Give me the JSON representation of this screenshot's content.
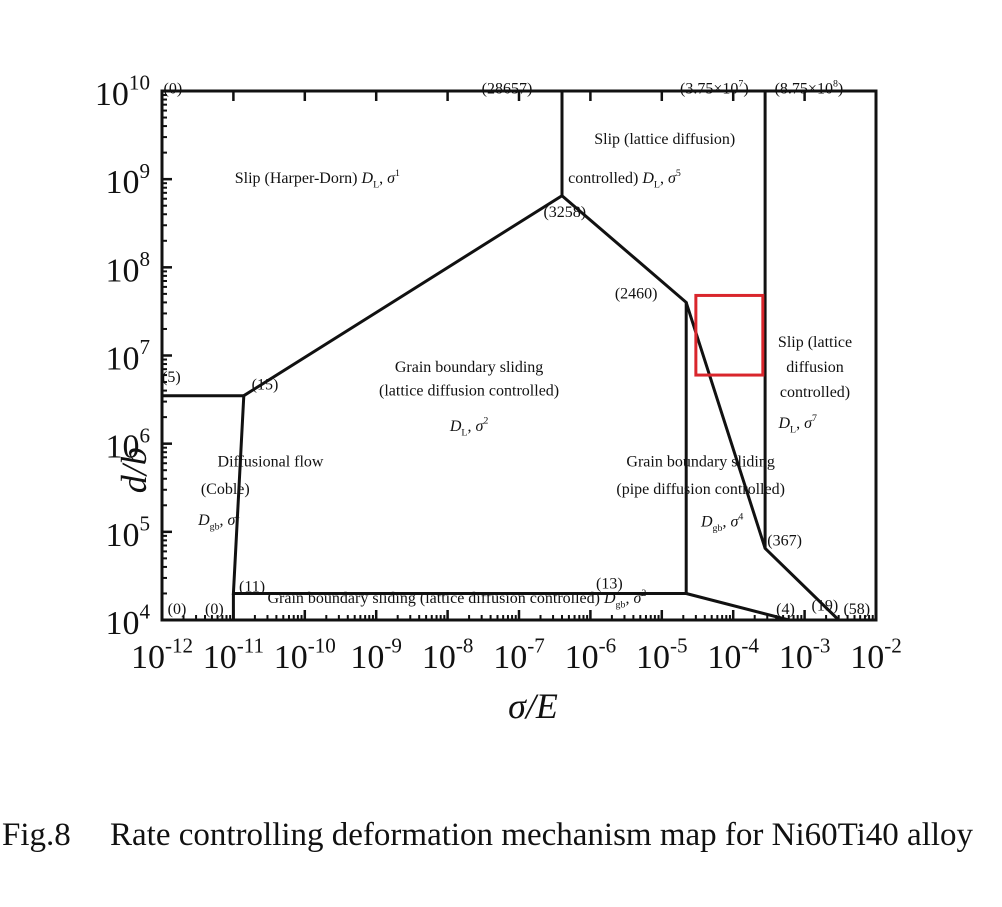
{
  "caption": {
    "label": "Fig.8",
    "text": "Rate controlling deformation mechanism map for Ni60Ti40 alloy"
  },
  "chart_data": {
    "type": "deformation-mechanism-map",
    "xlabel": "σ/E",
    "ylabel": "d/b",
    "x_scale": "log",
    "y_scale": "log",
    "xlim": [
      1e-12,
      0.01
    ],
    "ylim": [
      10000.0,
      10000000000.0
    ],
    "x_ticks": [
      {
        "exp": "-12"
      },
      {
        "exp": "-11"
      },
      {
        "exp": "-10"
      },
      {
        "exp": "-9"
      },
      {
        "exp": "-8"
      },
      {
        "exp": "-7"
      },
      {
        "exp": "-6"
      },
      {
        "exp": "-5"
      },
      {
        "exp": "-4"
      },
      {
        "exp": "-3"
      },
      {
        "exp": "-2"
      }
    ],
    "y_ticks": [
      {
        "exp": "4"
      },
      {
        "exp": "5"
      },
      {
        "exp": "6"
      },
      {
        "exp": "7"
      },
      {
        "exp": "8"
      },
      {
        "exp": "9"
      },
      {
        "exp": "10"
      }
    ],
    "boundaries": [
      {
        "points": [
          [
            1e-12,
            3500000.0
          ],
          [
            1.4e-11,
            3500000.0
          ]
        ]
      },
      {
        "points": [
          [
            1.4e-11,
            3500000.0
          ],
          [
            4e-07,
            650000000.0
          ],
          [
            2.2e-05,
            40000000.0
          ],
          [
            2.2e-05,
            20000.0
          ]
        ]
      },
      {
        "points": [
          [
            4e-07,
            650000000.0
          ],
          [
            4e-07,
            10000000000.0
          ]
        ]
      },
      {
        "points": [
          [
            1.4e-11,
            3500000.0
          ],
          [
            1e-11,
            20000.0
          ],
          [
            2.2e-05,
            20000.0
          ]
        ]
      },
      {
        "points": [
          [
            1e-11,
            20000.0
          ],
          [
            1e-11,
            10000.0
          ]
        ]
      },
      {
        "points": [
          [
            2.2e-05,
            40000000.0
          ],
          [
            0.00028,
            65000.0
          ],
          [
            0.003,
            10000.0
          ]
        ]
      },
      {
        "points": [
          [
            2.2e-05,
            20000.0
          ],
          [
            0.0006,
            10000.0
          ]
        ]
      },
      {
        "points": [
          [
            0.00028,
            65000.0
          ],
          [
            0.00028,
            10000000000.0
          ]
        ]
      }
    ],
    "regions": [
      {
        "name": "Slip (Harper-Dorn) D_L, σ^1",
        "lines": [
          {
            "x": 1.5e-10,
            "y": 900000000.0,
            "parts": [
              {
                "t": "Slip (Harper-Dorn) "
              },
              {
                "t": "D",
                "i": true
              },
              {
                "t": "L",
                "sub": true
              },
              {
                "t": ", "
              },
              {
                "t": "σ",
                "i": true
              },
              {
                "t": "1",
                "sup": true
              }
            ]
          }
        ]
      },
      {
        "name": "Slip (lattice diffusion) controlled D_L, σ^5",
        "lines": [
          {
            "x": 1.1e-05,
            "y": 2500000000.0,
            "parts": [
              {
                "t": "Slip (lattice diffusion)"
              }
            ]
          },
          {
            "x": 3e-06,
            "y": 900000000.0,
            "parts": [
              {
                "t": "controlled) "
              },
              {
                "t": "D",
                "i": true
              },
              {
                "t": "L",
                "sub": true
              },
              {
                "t": ", "
              },
              {
                "t": "σ",
                "i": true
              },
              {
                "t": "5",
                "sup": true
              }
            ]
          }
        ]
      },
      {
        "name": "Grain boundary sliding (lattice diffusion controlled) D_L, σ^2",
        "lines": [
          {
            "x": 2e-08,
            "y": 6500000.0,
            "parts": [
              {
                "t": "Grain boundary sliding"
              }
            ]
          },
          {
            "x": 2e-08,
            "y": 3500000.0,
            "parts": [
              {
                "t": "(lattice diffusion controlled)"
              }
            ]
          },
          {
            "x": 2e-08,
            "y": 1400000.0,
            "parts": [
              {
                "t": "D",
                "i": true
              },
              {
                "t": "L",
                "sub": true
              },
              {
                "t": ", "
              },
              {
                "t": "σ",
                "i": true
              },
              {
                "t": "2",
                "sup": true
              }
            ]
          }
        ]
      },
      {
        "name": "Diffusional flow (Coble) D_gb, σ^1",
        "lines": [
          {
            "x": 6e-12,
            "y": 550000.0,
            "parts": [
              {
                "t": "Diffusional flow"
              }
            ]
          },
          {
            "x": 3.5e-12,
            "y": 270000.0,
            "parts": [
              {
                "t": "(Coble)"
              }
            ]
          },
          {
            "x": 3.2e-12,
            "y": 120000.0,
            "parts": [
              {
                "t": "D",
                "i": true
              },
              {
                "t": "gb",
                "sub": true
              },
              {
                "t": ", "
              },
              {
                "t": "σ",
                "i": true
              },
              {
                "t": "1",
                "sup": true
              }
            ]
          }
        ]
      },
      {
        "name": "Grain boundary sliding (pipe diffusion controlled) D_gb, σ^4",
        "lines": [
          {
            "x": 3.5e-05,
            "y": 550000.0,
            "parts": [
              {
                "t": "Grain boundary sliding"
              }
            ]
          },
          {
            "x": 3.5e-05,
            "y": 270000.0,
            "parts": [
              {
                "t": "(pipe diffusion controlled)"
              }
            ]
          },
          {
            "x": 7e-05,
            "y": 115000.0,
            "parts": [
              {
                "t": "D",
                "i": true
              },
              {
                "t": "gb",
                "sub": true
              },
              {
                "t": ", "
              },
              {
                "t": "σ",
                "i": true
              },
              {
                "t": "4",
                "sup": true
              }
            ]
          }
        ]
      },
      {
        "name": "Slip (lattice diffusion controlled) D_L, σ^7",
        "lines": [
          {
            "x": 0.0014,
            "y": 12500000.0,
            "parts": [
              {
                "t": "Slip (lattice"
              }
            ]
          },
          {
            "x": 0.0014,
            "y": 6500000.0,
            "parts": [
              {
                "t": "diffusion"
              }
            ]
          },
          {
            "x": 0.0014,
            "y": 3400000.0,
            "parts": [
              {
                "t": "controlled)"
              }
            ]
          },
          {
            "x": 0.0008,
            "y": 1500000.0,
            "parts": [
              {
                "t": "D",
                "i": true
              },
              {
                "t": "L",
                "sub": true
              },
              {
                "t": ", "
              },
              {
                "t": "σ",
                "i": true
              },
              {
                "t": "7",
                "sup": true
              }
            ]
          }
        ]
      },
      {
        "name": "Grain boundary sliding (lattice diffusion controlled) D_gb, σ^2",
        "lines": [
          {
            "x": 3e-11,
            "y": 15500.0,
            "parts": [
              {
                "t": "Grain boundary sliding (lattice diffusion controlled) "
              },
              {
                "t": "D",
                "i": true
              },
              {
                "t": "gb",
                "sub": true
              },
              {
                "t": ", "
              },
              {
                "t": "σ",
                "i": true
              },
              {
                "t": "2",
                "sup": true
              }
            ]
          }
        ]
      }
    ],
    "point_labels": [
      {
        "x": 1.05e-12,
        "y": 8000000000.0,
        "parts": [
          {
            "t": "(0)"
          }
        ]
      },
      {
        "x": 3e-08,
        "y": 8000000000.0,
        "parts": [
          {
            "t": "(28657)"
          }
        ]
      },
      {
        "x": 1.8e-05,
        "y": 8000000000.0,
        "parts": [
          {
            "t": "(3.75×10"
          },
          {
            "t": "7",
            "sup": true
          },
          {
            "t": ")"
          }
        ]
      },
      {
        "x": 0.00038,
        "y": 8000000000.0,
        "parts": [
          {
            "t": "(8.75×10"
          },
          {
            "t": "8",
            "sup": true
          },
          {
            "t": ")"
          }
        ]
      },
      {
        "x": 2.2e-07,
        "y": 320000000.0,
        "parts": [
          {
            "t": "(3258)"
          }
        ]
      },
      {
        "x": 2.2e-06,
        "y": 38000000.0,
        "parts": [
          {
            "t": "(2460)"
          }
        ]
      },
      {
        "x": 1e-12,
        "y": 4300000.0,
        "parts": [
          {
            "t": "(5)"
          }
        ]
      },
      {
        "x": 1.8e-11,
        "y": 3500000.0,
        "parts": [
          {
            "t": "(15)"
          }
        ]
      },
      {
        "x": 0.0003,
        "y": 60000.0,
        "parts": [
          {
            "t": "(367)"
          }
        ]
      },
      {
        "x": 1.2e-11,
        "y": 18000.0,
        "parts": [
          {
            "t": "(11)"
          }
        ]
      },
      {
        "x": 1.2e-06,
        "y": 19500.0,
        "parts": [
          {
            "t": "(13)"
          }
        ]
      },
      {
        "x": 1.2e-12,
        "y": 10000.0,
        "parts": [
          {
            "t": "(0)"
          }
        ]
      },
      {
        "x": 4e-12,
        "y": 10000.0,
        "parts": [
          {
            "t": "(0)"
          }
        ]
      },
      {
        "x": 0.0004,
        "y": 10000.0,
        "parts": [
          {
            "t": "(4)"
          }
        ]
      },
      {
        "x": 0.00125,
        "y": 11000.0,
        "parts": [
          {
            "t": "(19)"
          }
        ]
      },
      {
        "x": 0.0035,
        "y": 10000.0,
        "parts": [
          {
            "t": "(58)"
          }
        ]
      }
    ],
    "highlight_box": {
      "x": [
        3e-05,
        0.00026
      ],
      "y": [
        6000000.0,
        48000000.0
      ],
      "color": "#d9262c"
    },
    "grid": false,
    "legend": "none"
  }
}
